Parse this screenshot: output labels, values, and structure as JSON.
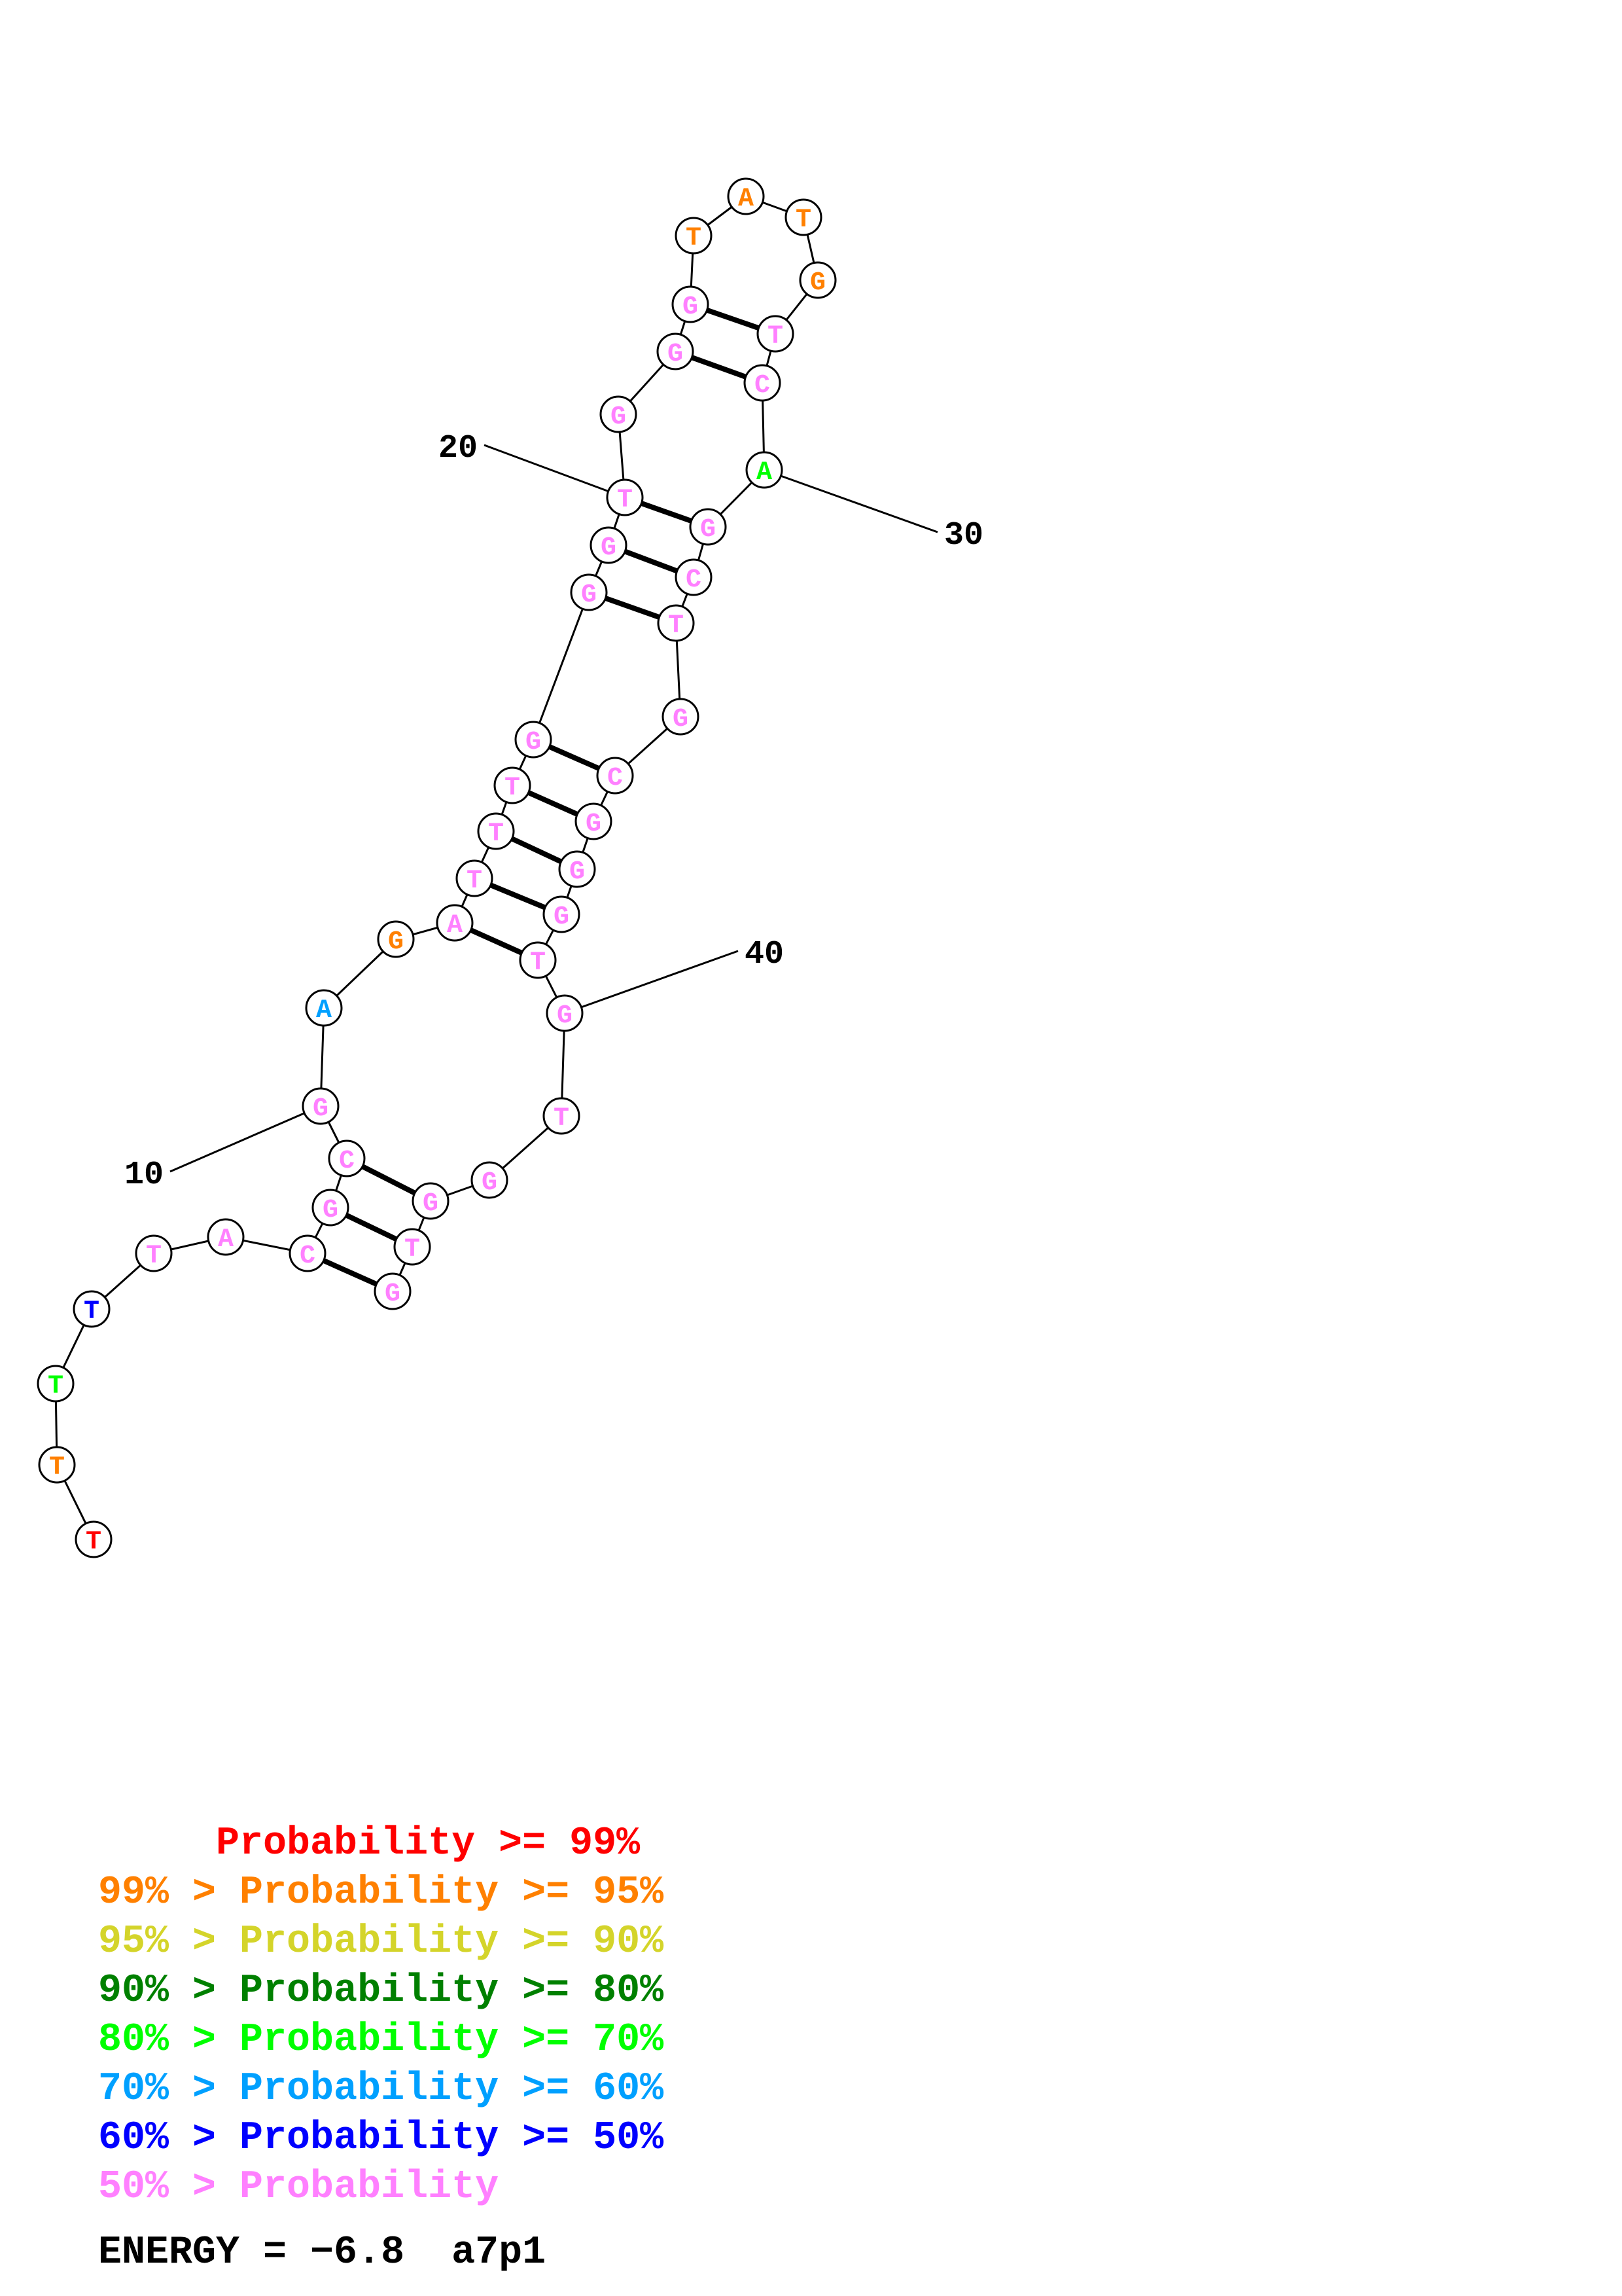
{
  "structure": {
    "sequence": [
      "T",
      "T",
      "T",
      "T",
      "T",
      "A",
      "C",
      "G",
      "C",
      "G",
      "A",
      "G",
      "A",
      "T",
      "T",
      "T",
      "G",
      "G",
      "G",
      "T",
      "G",
      "G",
      "G",
      "T",
      "A",
      "T",
      "G",
      "T",
      "C",
      "A",
      "G",
      "C",
      "T",
      "G",
      "C",
      "G",
      "G",
      "G",
      "T",
      "G",
      "T",
      "G",
      "G",
      "T",
      "G"
    ],
    "probability_class": [
      0,
      1,
      4,
      6,
      7,
      7,
      7,
      7,
      7,
      7,
      5,
      1,
      7,
      7,
      7,
      7,
      7,
      7,
      7,
      7,
      7,
      7,
      7,
      1,
      1,
      1,
      1,
      7,
      7,
      4,
      7,
      7,
      7,
      7,
      7,
      7,
      7,
      7,
      7,
      7,
      7,
      7,
      7,
      7,
      7
    ],
    "pairs": [
      [
        7,
        45
      ],
      [
        8,
        44
      ],
      [
        9,
        43
      ],
      [
        13,
        39
      ],
      [
        14,
        38
      ],
      [
        15,
        37
      ],
      [
        16,
        36
      ],
      [
        17,
        35
      ],
      [
        18,
        33
      ],
      [
        19,
        32
      ],
      [
        20,
        31
      ],
      [
        22,
        29
      ],
      [
        23,
        28
      ]
    ],
    "position_labels": [
      {
        "index": 10,
        "text": "10"
      },
      {
        "index": 20,
        "text": "20"
      },
      {
        "index": 30,
        "text": "30"
      },
      {
        "index": 40,
        "text": "40"
      }
    ]
  },
  "legend": {
    "rows": [
      {
        "prefix": "     ",
        "text": "Probability >= 99%",
        "color": "#ff0000"
      },
      {
        "prefix": "99% > ",
        "text": "Probability >= 95%",
        "color": "#ff8000"
      },
      {
        "prefix": "95% > ",
        "text": "Probability >= 90%",
        "color": "#d4d42a"
      },
      {
        "prefix": "90% > ",
        "text": "Probability >= 80%",
        "color": "#008000"
      },
      {
        "prefix": "80% > ",
        "text": "Probability >= 70%",
        "color": "#00ff00"
      },
      {
        "prefix": "70% > ",
        "text": "Probability >= 60%",
        "color": "#00a0ff"
      },
      {
        "prefix": "60% > ",
        "text": "Probability >= 50%",
        "color": "#0000ff"
      },
      {
        "prefix": "50% > ",
        "text": "Probability",
        "color": "#ff80ff"
      }
    ]
  },
  "energy": {
    "label": "ENERGY = −6.8",
    "name": "a7p1"
  },
  "colors": [
    "#ff0000",
    "#ff8000",
    "#d4d42a",
    "#008000",
    "#00ff00",
    "#00a0ff",
    "#0000ff",
    "#ff80ff"
  ]
}
